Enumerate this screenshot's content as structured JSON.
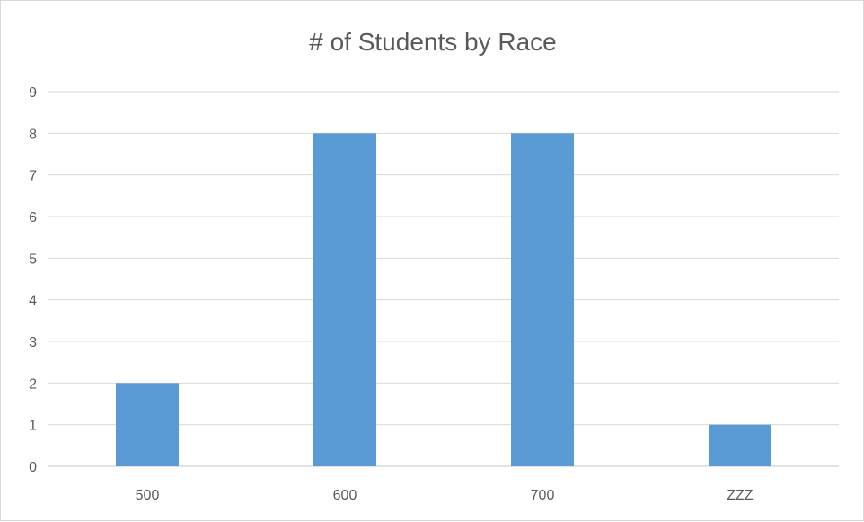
{
  "chart_data": {
    "type": "bar",
    "title": "# of Students by Race",
    "categories": [
      "500",
      "600",
      "700",
      "ZZZ"
    ],
    "values": [
      2,
      8,
      8,
      1
    ],
    "xlabel": "",
    "ylabel": "",
    "ylim": [
      0,
      9
    ],
    "yticks": [
      "0",
      "1",
      "2",
      "3",
      "4",
      "5",
      "6",
      "7",
      "8",
      "9"
    ],
    "grid": true,
    "legend": "none",
    "bar_color": "#5b9bd5",
    "grid_color": "#d9d9d9",
    "text_color": "#595959"
  }
}
